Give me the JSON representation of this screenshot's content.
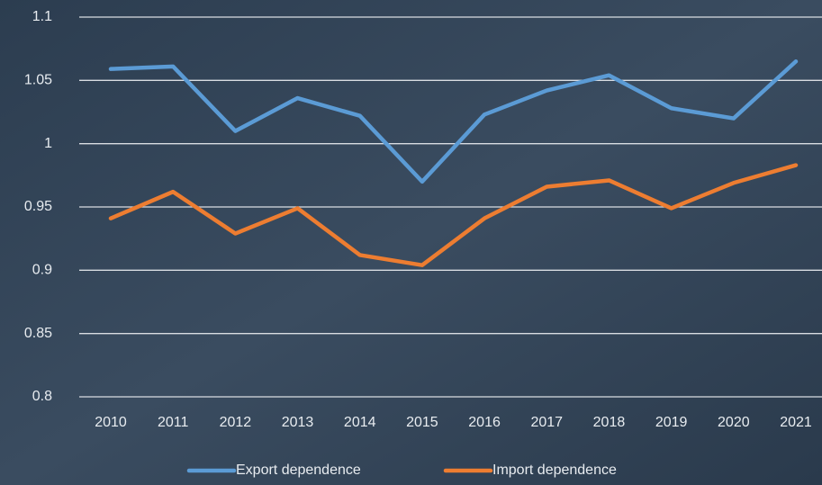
{
  "chart_data": {
    "type": "line",
    "categories": [
      "2010",
      "2011",
      "2012",
      "2013",
      "2014",
      "2015",
      "2016",
      "2017",
      "2018",
      "2019",
      "2020",
      "2021"
    ],
    "series": [
      {
        "name": "Export dependence",
        "color": "#5b9bd5",
        "values": [
          1.059,
          1.061,
          1.01,
          1.036,
          1.022,
          0.97,
          1.023,
          1.042,
          1.054,
          1.028,
          1.02,
          1.065
        ]
      },
      {
        "name": "Import dependence",
        "color": "#ed7d31",
        "values": [
          0.941,
          0.962,
          0.929,
          0.949,
          0.912,
          0.904,
          0.941,
          0.966,
          0.971,
          0.949,
          0.969,
          0.983
        ]
      }
    ],
    "ylim": [
      0.8,
      1.1
    ],
    "yticks": [
      0.8,
      0.85,
      0.9,
      0.95,
      1,
      1.05,
      1.1
    ],
    "grid": true,
    "legend": "bottom"
  }
}
